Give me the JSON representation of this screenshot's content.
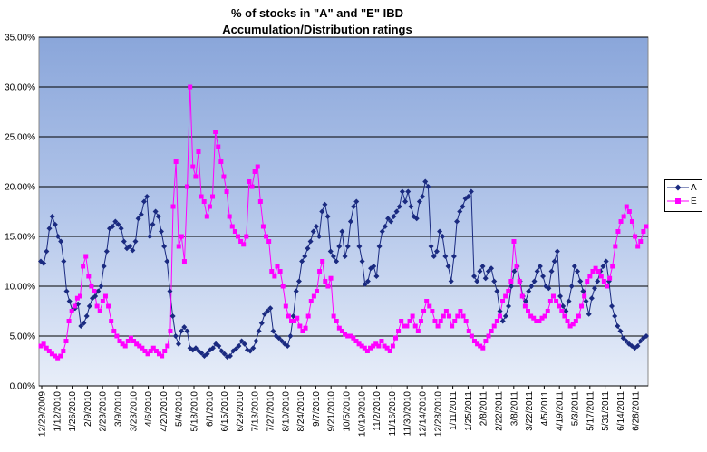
{
  "chart_data": {
    "type": "line",
    "title_line1": "% of stocks in \"A\" and \"E\" IBD",
    "title_line2": "Accumulation/Distribution  ratings",
    "xlabel": "",
    "ylabel": "",
    "ylim": [
      0,
      35
    ],
    "y_ticks": [
      "0.00%",
      "5.00%",
      "10.00%",
      "15.00%",
      "20.00%",
      "25.00%",
      "30.00%",
      "35.00%"
    ],
    "x_ticks": [
      "12/29/2009",
      "1/12/2010",
      "1/26/2010",
      "2/9/2010",
      "2/23/2010",
      "3/9/2010",
      "3/23/2010",
      "4/6/2010",
      "4/20/2010",
      "5/4/2010",
      "5/18/2010",
      "6/1/2010",
      "6/15/2010",
      "6/29/2010",
      "7/13/2010",
      "7/27/2010",
      "8/10/2010",
      "8/24/2010",
      "9/7/2010",
      "9/21/2010",
      "10/5/2010",
      "10/19/2010",
      "11/2/2010",
      "11/16/2010",
      "11/30/2010",
      "12/14/2010",
      "12/28/2010",
      "1/11/2011",
      "1/25/2011",
      "2/8/2011",
      "2/22/2011",
      "3/8/2011",
      "3/22/2011",
      "4/5/2011",
      "4/19/2011",
      "5/3/2011",
      "5/17/2011",
      "5/31/2011",
      "6/14/2011",
      "6/28/2011"
    ],
    "legend": [
      "A",
      "E"
    ],
    "series": [
      {
        "name": "A",
        "color": "#1a2a80",
        "marker": "diamond",
        "values": [
          12.5,
          12.3,
          13.5,
          15.8,
          17.0,
          16.2,
          15.0,
          14.5,
          12.5,
          9.5,
          8.5,
          7.6,
          7.8,
          8.2,
          6.0,
          6.3,
          7.0,
          8.0,
          8.8,
          9.0,
          9.5,
          10.0,
          12.0,
          13.5,
          15.8,
          16.0,
          16.5,
          16.2,
          15.8,
          14.5,
          13.8,
          14.0,
          13.6,
          14.5,
          16.8,
          17.2,
          18.5,
          19.0,
          15.0,
          16.2,
          17.5,
          17.0,
          15.5,
          14.0,
          12.5,
          9.5,
          7.0,
          5.0,
          4.2,
          5.5,
          5.9,
          5.5,
          3.8,
          3.6,
          3.8,
          3.5,
          3.3,
          3.0,
          3.2,
          3.6,
          3.8,
          4.2,
          4.0,
          3.5,
          3.2,
          2.9,
          3.0,
          3.5,
          3.7,
          4.0,
          4.5,
          4.2,
          3.6,
          3.5,
          3.8,
          4.5,
          5.5,
          6.3,
          7.2,
          7.5,
          7.8,
          5.5,
          5.0,
          4.8,
          4.5,
          4.2,
          4.0,
          5.0,
          7.0,
          9.5,
          10.5,
          12.5,
          13.0,
          13.8,
          14.5,
          15.5,
          16.0,
          15.0,
          17.5,
          18.2,
          17.0,
          13.5,
          13.0,
          12.5,
          14.0,
          15.5,
          13.0,
          14.0,
          16.5,
          18.0,
          18.5,
          14.0,
          12.5,
          10.2,
          10.5,
          11.8,
          12.0,
          11.0,
          14.0,
          15.5,
          16.0,
          16.8,
          16.5,
          17.0,
          17.5,
          18.0,
          19.5,
          18.5,
          19.5,
          18.0,
          17.0,
          16.8,
          18.5,
          19.0,
          20.5,
          20.0,
          14.0,
          13.0,
          13.5,
          15.5,
          15.0,
          13.0,
          12.0,
          10.5,
          13.0,
          16.5,
          17.5,
          18.0,
          18.8,
          19.0,
          19.5,
          11.0,
          10.5,
          11.5,
          12.0,
          10.8,
          11.5,
          11.8,
          10.5,
          9.5,
          7.5,
          6.5,
          7.0,
          8.0,
          10.0,
          11.5,
          12.0,
          10.5,
          9.0,
          8.5,
          9.5,
          10.0,
          10.5,
          11.5,
          12.0,
          11.0,
          10.0,
          9.8,
          11.5,
          12.5,
          13.5,
          9.0,
          8.0,
          7.5,
          8.5,
          10.0,
          12.0,
          11.5,
          10.5,
          9.5,
          8.5,
          7.2,
          8.8,
          9.8,
          10.5,
          11.5,
          12.0,
          12.5,
          10.5,
          8.0,
          7.0,
          6.0,
          5.5,
          4.8,
          4.5,
          4.2,
          4.0,
          3.8,
          4.0,
          4.5,
          4.8,
          5.0
        ]
      },
      {
        "name": "E",
        "color": "#ff00ff",
        "marker": "square",
        "values": [
          4.0,
          4.2,
          3.8,
          3.5,
          3.2,
          3.0,
          2.8,
          3.0,
          3.5,
          4.5,
          6.5,
          7.5,
          8.0,
          8.8,
          9.0,
          12.0,
          13.0,
          11.0,
          10.0,
          9.5,
          8.0,
          7.5,
          8.5,
          9.0,
          8.0,
          6.5,
          5.5,
          5.0,
          4.5,
          4.2,
          4.0,
          4.5,
          4.8,
          4.5,
          4.2,
          4.0,
          3.8,
          3.5,
          3.2,
          3.5,
          3.8,
          3.5,
          3.2,
          3.0,
          3.5,
          4.0,
          5.5,
          18.0,
          22.5,
          14.0,
          15.0,
          12.5,
          20.0,
          30.0,
          22.0,
          21.0,
          23.5,
          19.0,
          18.5,
          17.0,
          18.0,
          19.0,
          25.5,
          24.0,
          22.5,
          21.0,
          19.5,
          17.0,
          16.0,
          15.5,
          15.0,
          14.5,
          14.2,
          15.0,
          20.5,
          20.0,
          21.5,
          22.0,
          18.5,
          16.0,
          15.0,
          14.5,
          11.5,
          11.0,
          12.0,
          11.5,
          10.0,
          8.0,
          7.0,
          6.5,
          6.5,
          6.8,
          6.0,
          5.5,
          5.8,
          7.0,
          8.5,
          9.0,
          9.5,
          11.5,
          12.5,
          10.5,
          10.0,
          10.8,
          7.0,
          6.5,
          5.8,
          5.5,
          5.2,
          5.0,
          5.0,
          4.8,
          4.5,
          4.2,
          4.0,
          3.8,
          3.5,
          3.8,
          4.0,
          4.2,
          4.0,
          4.5,
          4.0,
          3.8,
          3.5,
          4.0,
          4.8,
          5.5,
          6.5,
          6.0,
          6.0,
          6.5,
          7.0,
          6.0,
          5.5,
          6.5,
          7.5,
          8.5,
          8.0,
          7.5,
          6.5,
          6.0,
          6.5,
          7.0,
          7.5,
          7.0,
          6.0,
          6.5,
          7.0,
          7.5,
          7.0,
          6.5,
          5.5,
          5.0,
          4.5,
          4.2,
          4.0,
          3.8,
          4.5,
          5.0,
          5.5,
          6.0,
          6.5,
          7.0,
          8.5,
          9.0,
          9.5,
          10.5,
          14.5,
          12.0,
          10.5,
          9.0,
          8.0,
          7.5,
          7.0,
          6.8,
          6.5,
          6.5,
          6.8,
          7.0,
          7.5,
          8.5,
          9.0,
          8.5,
          8.0,
          7.5,
          7.0,
          6.5,
          6.0,
          6.2,
          6.5,
          7.0,
          8.0,
          9.0,
          10.5,
          11.0,
          11.5,
          11.8,
          11.5,
          11.0,
          10.5,
          10.0,
          10.8,
          12.0,
          14.0,
          15.5,
          16.5,
          17.0,
          18.0,
          17.5,
          16.5,
          15.0,
          14.0,
          14.5,
          15.5,
          16.0
        ]
      }
    ]
  }
}
